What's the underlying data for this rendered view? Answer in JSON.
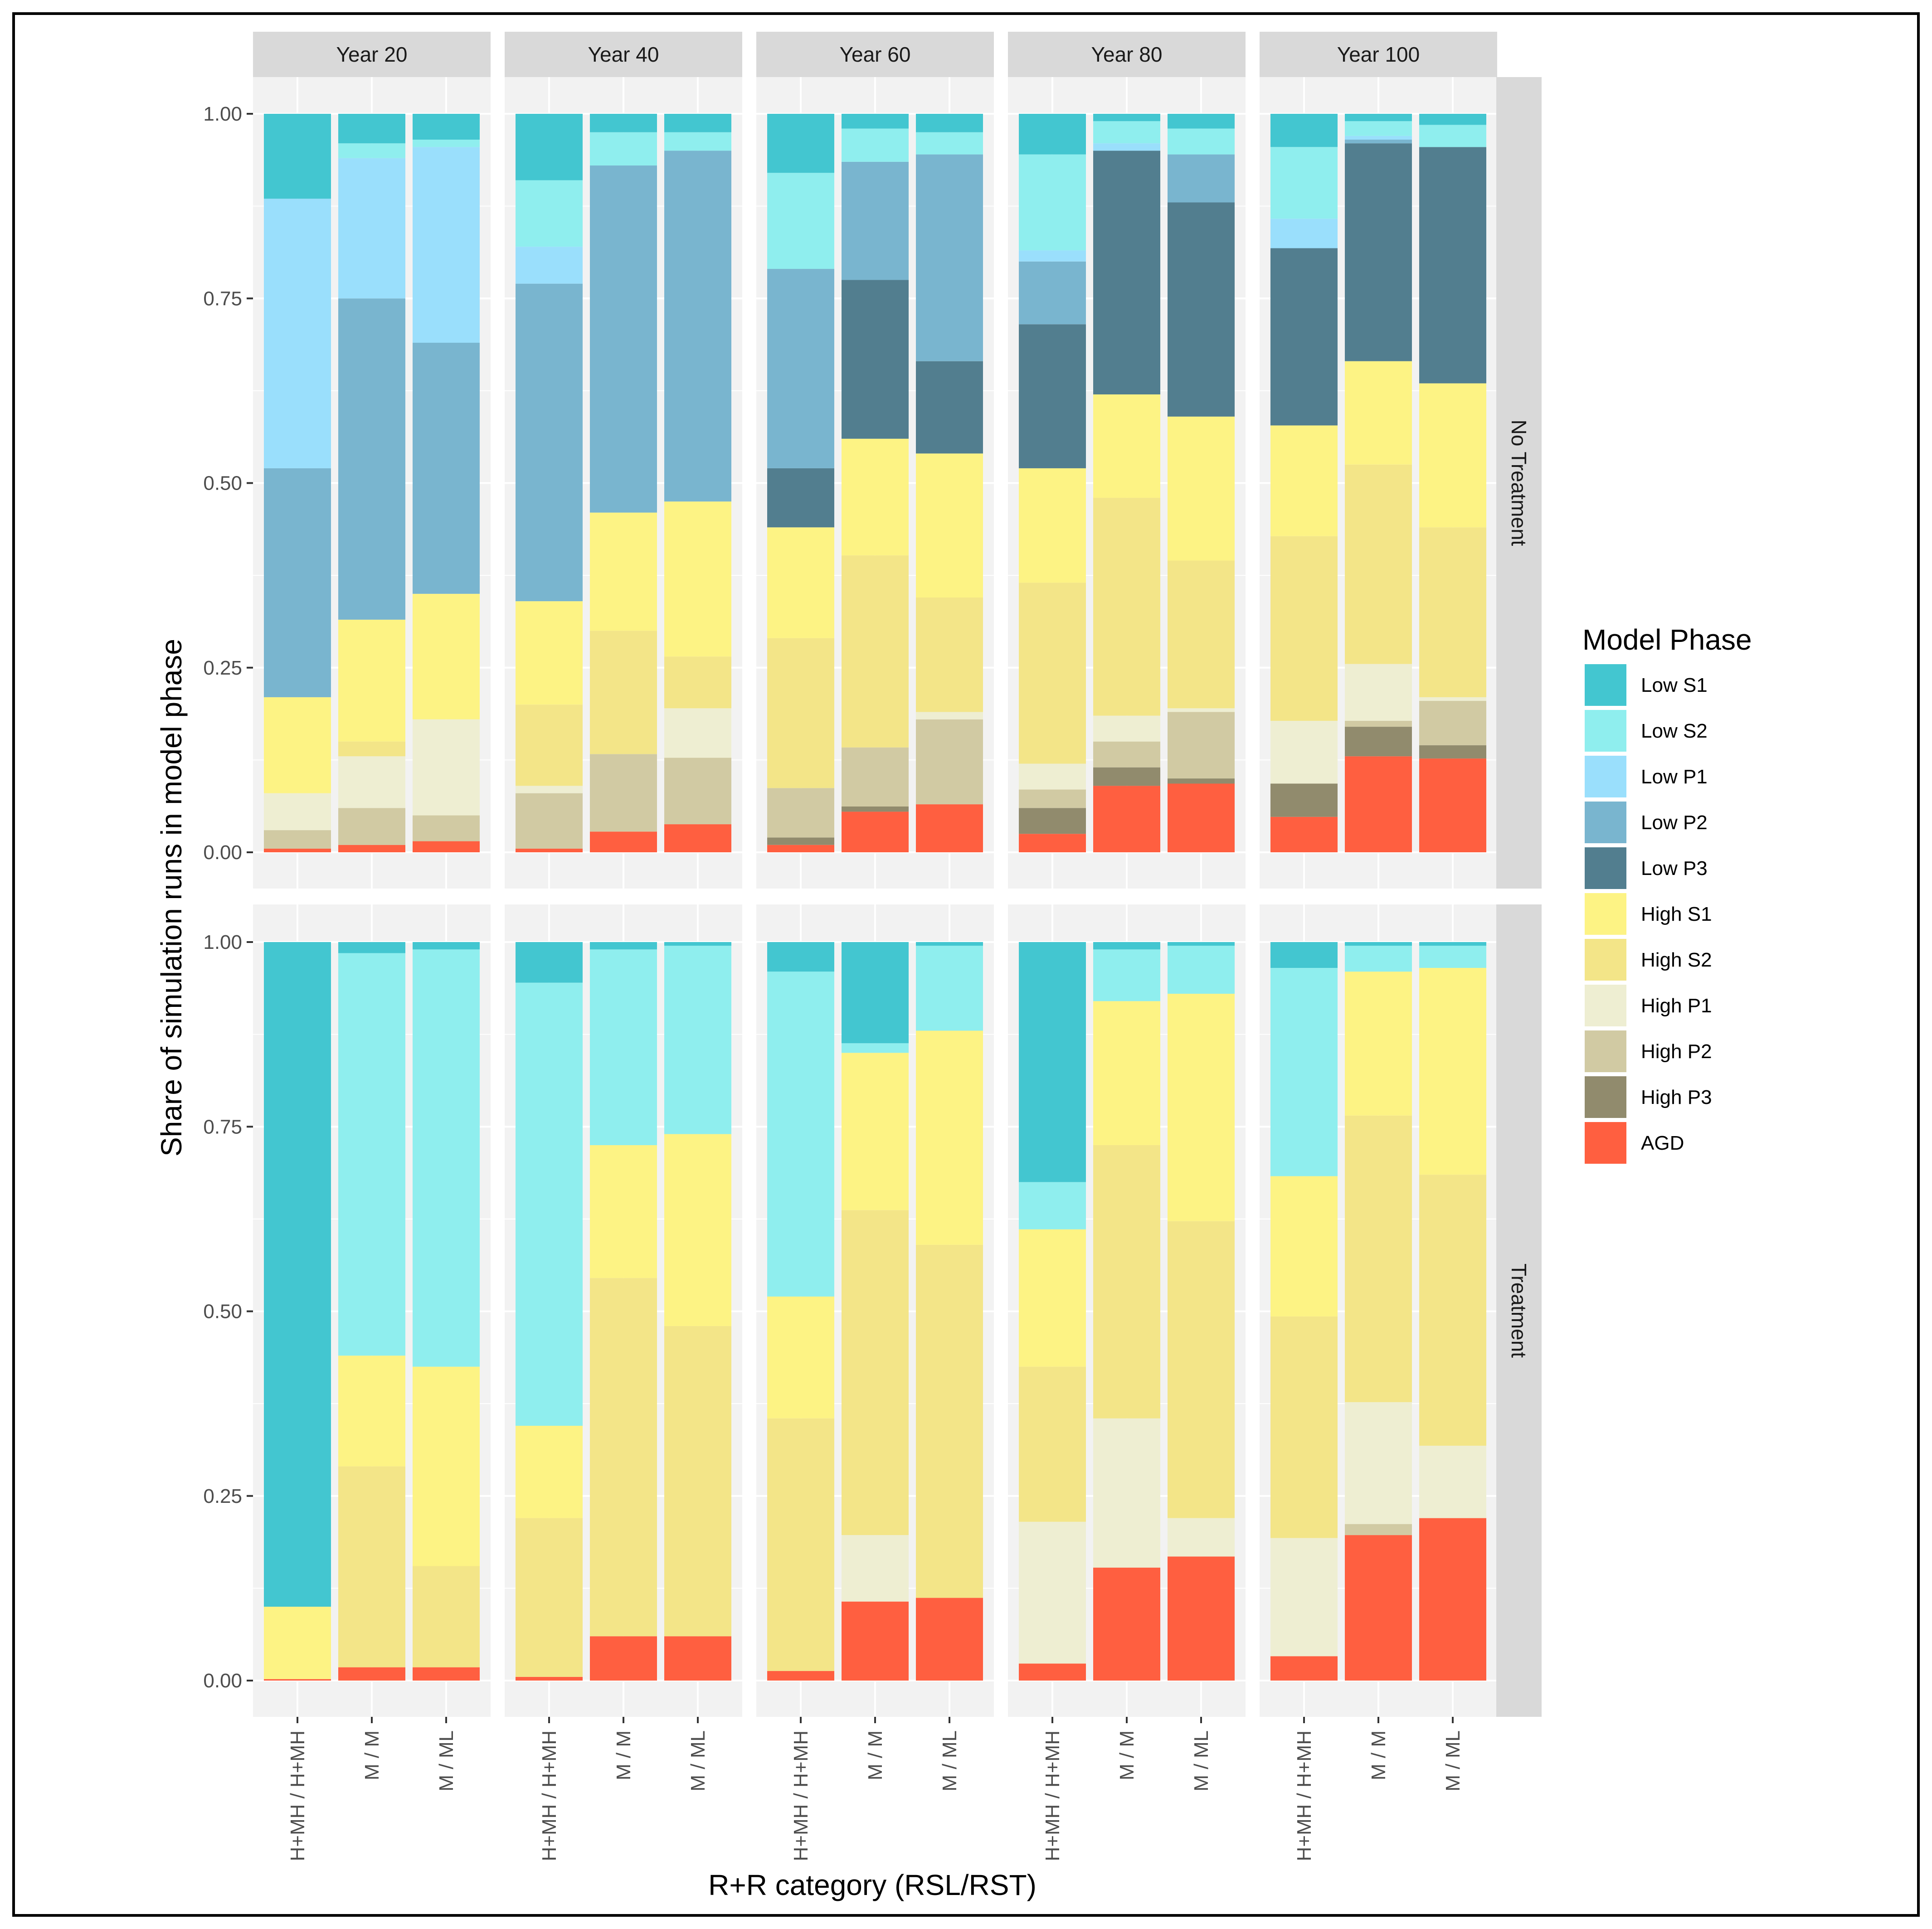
{
  "chart_data": {
    "type": "bar",
    "stacked": true,
    "faceted": true,
    "xlabel": "R+R category (RSL/RST)",
    "ylabel": "Share of simulation runs in model phase",
    "ylim": [
      0,
      1
    ],
    "yticks": [
      "0.00",
      "0.25",
      "0.50",
      "0.75",
      "1.00"
    ],
    "grid": true,
    "legend_position": "right",
    "legend_title": "Model Phase",
    "categories": [
      "H+MH / H+MH",
      "M / M",
      "M / ML"
    ],
    "column_facets": [
      "Year 20",
      "Year 40",
      "Year 60",
      "Year 80",
      "Year 100"
    ],
    "row_facets": [
      "No Treatment",
      "Treatment"
    ],
    "phases": [
      {
        "name": "Low S1",
        "color": "#43C6D0"
      },
      {
        "name": "Low S2",
        "color": "#8FEEEE"
      },
      {
        "name": "Low P1",
        "color": "#9ADFFC"
      },
      {
        "name": "Low P2",
        "color": "#79B5CF"
      },
      {
        "name": "Low P3",
        "color": "#527E8F"
      },
      {
        "name": "High S1",
        "color": "#FDF384"
      },
      {
        "name": "High S2",
        "color": "#F3E588"
      },
      {
        "name": "High P1",
        "color": "#EEEED2"
      },
      {
        "name": "High P2",
        "color": "#D1CAA3"
      },
      {
        "name": "High P3",
        "color": "#918B6D"
      },
      {
        "name": "AGD",
        "color": "#FF5F40"
      }
    ],
    "stack_order_bottom_to_top": [
      "AGD",
      "High P3",
      "High P2",
      "High P1",
      "High S2",
      "High S1",
      "Low P3",
      "Low P2",
      "Low P1",
      "Low S2",
      "Low S1"
    ],
    "panels": [
      {
        "row": "No Treatment",
        "col": "Year 20",
        "bars": [
          {
            "AGD": 0.005,
            "High P3": 0,
            "High P2": 0.025,
            "High P1": 0.05,
            "High S2": 0,
            "High S1": 0.13,
            "Low P3": 0,
            "Low P2": 0.31,
            "Low P1": 0.365,
            "Low S2": 0,
            "Low S1": 0.115
          },
          {
            "AGD": 0.01,
            "High P3": 0,
            "High P2": 0.05,
            "High P1": 0.07,
            "High S2": 0.02,
            "High S1": 0.165,
            "Low P3": 0,
            "Low P2": 0.435,
            "Low P1": 0.19,
            "Low S2": 0.02,
            "Low S1": 0.04
          },
          {
            "AGD": 0.015,
            "High P3": 0,
            "High P2": 0.035,
            "High P1": 0.13,
            "High S2": 0,
            "High S1": 0.17,
            "Low P3": 0,
            "Low P2": 0.34,
            "Low P1": 0.265,
            "Low S2": 0.01,
            "Low S1": 0.035
          }
        ]
      },
      {
        "row": "No Treatment",
        "col": "Year 40",
        "bars": [
          {
            "AGD": 0.005,
            "High P3": 0,
            "High P2": 0.075,
            "High P1": 0.01,
            "High S2": 0.11,
            "High S1": 0.14,
            "Low P3": 0,
            "Low P2": 0.43,
            "Low P1": 0.05,
            "Low S2": 0.09,
            "Low S1": 0.09
          },
          {
            "AGD": 0.028,
            "High P3": 0,
            "High P2": 0.105,
            "High P1": 0,
            "High S2": 0.167,
            "High S1": 0.16,
            "Low P3": 0,
            "Low P2": 0.47,
            "Low P1": 0,
            "Low S2": 0.045,
            "Low S1": 0.025
          },
          {
            "AGD": 0.038,
            "High P3": 0,
            "High P2": 0.09,
            "High P1": 0.067,
            "High S2": 0.07,
            "High S1": 0.21,
            "Low P3": 0,
            "Low P2": 0.475,
            "Low P1": 0,
            "Low S2": 0.025,
            "Low S1": 0.025
          }
        ]
      },
      {
        "row": "No Treatment",
        "col": "Year 60",
        "bars": [
          {
            "AGD": 0.01,
            "High P3": 0.01,
            "High P2": 0.067,
            "High P1": 0,
            "High S2": 0.203,
            "High S1": 0.15,
            "Low P3": 0.08,
            "Low P2": 0.27,
            "Low P1": 0,
            "Low S2": 0.13,
            "Low S1": 0.08
          },
          {
            "AGD": 0.055,
            "High P3": 0.007,
            "High P2": 0.08,
            "High P1": 0,
            "High S2": 0.26,
            "High S1": 0.158,
            "Low P3": 0.215,
            "Low P2": 0.16,
            "Low P1": 0,
            "Low S2": 0.045,
            "Low S1": 0.02
          },
          {
            "AGD": 0.065,
            "High P3": 0,
            "High P2": 0.115,
            "High P1": 0.01,
            "High S2": 0.155,
            "High S1": 0.195,
            "Low P3": 0.125,
            "Low P2": 0.28,
            "Low P1": 0,
            "Low S2": 0.03,
            "Low S1": 0.025
          }
        ]
      },
      {
        "row": "No Treatment",
        "col": "Year 80",
        "bars": [
          {
            "AGD": 0.025,
            "High P3": 0.035,
            "High P2": 0.025,
            "High P1": 0.035,
            "High S2": 0.245,
            "High S1": 0.155,
            "Low P3": 0.195,
            "Low P2": 0.085,
            "Low P1": 0.015,
            "Low S2": 0.13,
            "Low S1": 0.055
          },
          {
            "AGD": 0.09,
            "High P3": 0.025,
            "High P2": 0.035,
            "High P1": 0.035,
            "High S2": 0.295,
            "High S1": 0.14,
            "Low P3": 0.33,
            "Low P2": 0,
            "Low P1": 0.01,
            "Low S2": 0.03,
            "Low S1": 0.01
          },
          {
            "AGD": 0.093,
            "High P3": 0.007,
            "High P2": 0.09,
            "High P1": 0.005,
            "High S2": 0.2,
            "High S1": 0.195,
            "Low P3": 0.29,
            "Low P2": 0.065,
            "Low P1": 0,
            "Low S2": 0.035,
            "Low S1": 0.02
          }
        ]
      },
      {
        "row": "No Treatment",
        "col": "Year 100",
        "bars": [
          {
            "AGD": 0.048,
            "High P3": 0.045,
            "High P2": 0,
            "High P1": 0.085,
            "High S2": 0.25,
            "High S1": 0.15,
            "Low P3": 0.24,
            "Low P2": 0,
            "Low P1": 0.04,
            "Low S2": 0.097,
            "Low S1": 0.045
          },
          {
            "AGD": 0.13,
            "High P3": 0.04,
            "High P2": 0.008,
            "High P1": 0.077,
            "High S2": 0.27,
            "High S1": 0.14,
            "Low P3": 0.295,
            "Low P2": 0.005,
            "Low P1": 0.005,
            "Low S2": 0.02,
            "Low S1": 0.01
          },
          {
            "AGD": 0.127,
            "High P3": 0.018,
            "High P2": 0.06,
            "High P1": 0.005,
            "High S2": 0.23,
            "High S1": 0.195,
            "Low P3": 0.32,
            "Low P2": 0,
            "Low P1": 0,
            "Low S2": 0.03,
            "Low S1": 0.015
          }
        ]
      },
      {
        "row": "Treatment",
        "col": "Year 20",
        "bars": [
          {
            "AGD": 0.002,
            "High P3": 0,
            "High P2": 0,
            "High P1": 0,
            "High S2": 0,
            "High S1": 0.098,
            "Low P3": 0,
            "Low P2": 0,
            "Low P1": 0,
            "Low S2": 0,
            "Low S1": 0.9
          },
          {
            "AGD": 0.018,
            "High P3": 0,
            "High P2": 0,
            "High P1": 0,
            "High S2": 0.272,
            "High S1": 0.15,
            "Low P3": 0,
            "Low P2": 0,
            "Low P1": 0,
            "Low S2": 0.545,
            "Low S1": 0.015
          },
          {
            "AGD": 0.018,
            "High P3": 0,
            "High P2": 0,
            "High P1": 0,
            "High S2": 0.137,
            "High S1": 0.27,
            "Low P3": 0,
            "Low P2": 0,
            "Low P1": 0,
            "Low S2": 0.565,
            "Low S1": 0.01
          }
        ]
      },
      {
        "row": "Treatment",
        "col": "Year 40",
        "bars": [
          {
            "AGD": 0.005,
            "High P3": 0,
            "High P2": 0,
            "High P1": 0,
            "High S2": 0.215,
            "High S1": 0.125,
            "Low P3": 0,
            "Low P2": 0,
            "Low P1": 0,
            "Low S2": 0.6,
            "Low S1": 0.055
          },
          {
            "AGD": 0.06,
            "High P3": 0,
            "High P2": 0,
            "High P1": 0,
            "High S2": 0.485,
            "High S1": 0.18,
            "Low P3": 0,
            "Low P2": 0,
            "Low P1": 0,
            "Low S2": 0.265,
            "Low S1": 0.01
          },
          {
            "AGD": 0.06,
            "High P3": 0,
            "High P2": 0,
            "High P1": 0,
            "High S2": 0.42,
            "High S1": 0.26,
            "Low P3": 0,
            "Low P2": 0,
            "Low P1": 0,
            "Low S2": 0.255,
            "Low S1": 0.005
          }
        ]
      },
      {
        "row": "Treatment",
        "col": "Year 60",
        "bars": [
          {
            "AGD": 0.013,
            "High P3": 0,
            "High P2": 0,
            "High P1": 0,
            "High S2": 0.342,
            "High S1": 0.165,
            "Low P3": 0,
            "Low P2": 0,
            "Low P1": 0,
            "Low S2": 0.44,
            "Low S1": 0.04
          },
          {
            "AGD": 0.107,
            "High P3": 0,
            "High P2": 0,
            "High P1": 0.09,
            "High S2": 0.44,
            "High S1": 0.213,
            "Low P3": 0,
            "Low P2": 0,
            "Low P1": 0,
            "Low S2": 0.013,
            "Low S1": 0.137
          },
          {
            "AGD": 0.112,
            "High P3": 0,
            "High P2": 0,
            "High P1": 0,
            "High S2": 0.478,
            "High S1": 0.29,
            "Low P3": 0,
            "Low P2": 0,
            "Low P1": 0,
            "Low S2": 0.115,
            "Low S1": 0.005
          }
        ]
      },
      {
        "row": "Treatment",
        "col": "Year 80",
        "bars": [
          {
            "AGD": 0.023,
            "High P3": 0,
            "High P2": 0,
            "High P1": 0.192,
            "High S2": 0.21,
            "High S1": 0.186,
            "Low P3": 0,
            "Low P2": 0,
            "Low P1": 0,
            "Low S2": 0.064,
            "Low S1": 0.325
          },
          {
            "AGD": 0.153,
            "High P3": 0,
            "High P2": 0,
            "High P1": 0.202,
            "High S2": 0.37,
            "High S1": 0.195,
            "Low P3": 0,
            "Low P2": 0,
            "Low P1": 0,
            "Low S2": 0.07,
            "Low S1": 0.01
          },
          {
            "AGD": 0.168,
            "High P3": 0,
            "High P2": 0,
            "High P1": 0.052,
            "High S2": 0.402,
            "High S1": 0.308,
            "Low P3": 0,
            "Low P2": 0,
            "Low P1": 0,
            "Low S2": 0.065,
            "Low S1": 0.005
          }
        ]
      },
      {
        "row": "Treatment",
        "col": "Year 100",
        "bars": [
          {
            "AGD": 0.033,
            "High P3": 0,
            "High P2": 0,
            "High P1": 0.16,
            "High S2": 0.3,
            "High S1": 0.19,
            "Low P3": 0,
            "Low P2": 0,
            "Low P1": 0,
            "Low S2": 0.282,
            "Low S1": 0.035
          },
          {
            "AGD": 0.197,
            "High P3": 0,
            "High P2": 0.015,
            "High P1": 0.165,
            "High S2": 0.388,
            "High S1": 0.195,
            "Low P3": 0,
            "Low P2": 0,
            "Low P1": 0,
            "Low S2": 0.035,
            "Low S1": 0.005
          },
          {
            "AGD": 0.22,
            "High P3": 0,
            "High P2": 0,
            "High P1": 0.098,
            "High S2": 0.367,
            "High S1": 0.28,
            "Low P3": 0,
            "Low P2": 0,
            "Low P1": 0,
            "Low S2": 0.03,
            "Low S1": 0.005
          }
        ]
      }
    ]
  }
}
